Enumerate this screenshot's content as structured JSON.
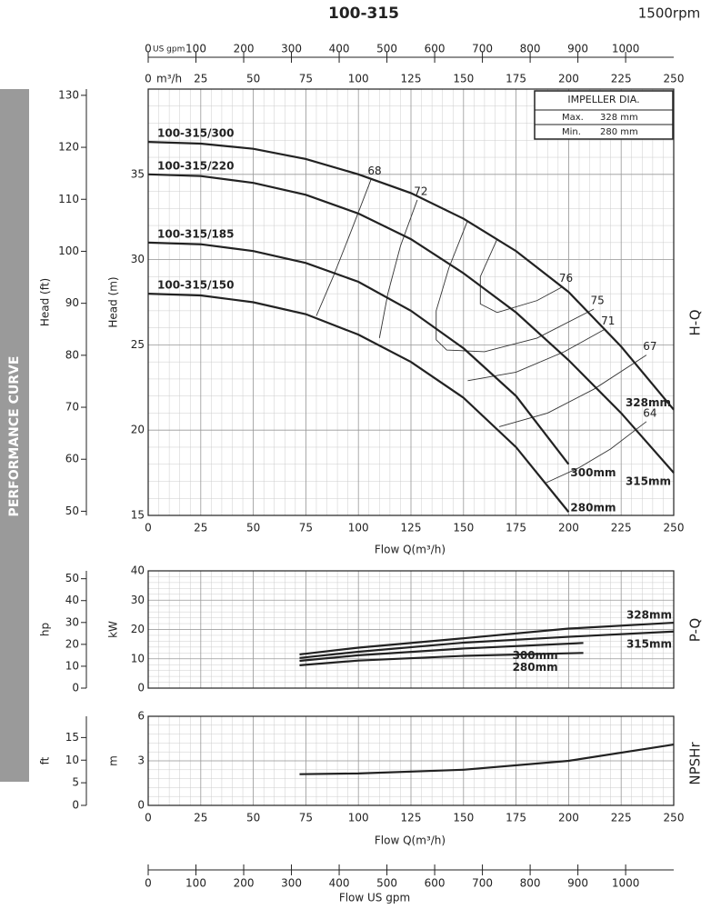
{
  "header": {
    "title": "100-315",
    "speed": "1500rpm"
  },
  "side_label": "PERFORMANCE CURVE",
  "chart_data": [
    {
      "type": "line",
      "title": "H-Q",
      "xlabel": "Flow  Q(m³/h)",
      "top_xlabel": "m³/h",
      "xlim": [
        0,
        250
      ],
      "xticks": [
        0,
        25,
        50,
        75,
        100,
        125,
        150,
        175,
        200,
        225,
        250
      ],
      "x2label": "US gpm",
      "x2lim": [
        0,
        1100.7
      ],
      "x2ticks": [
        0,
        100,
        200,
        300,
        400,
        500,
        600,
        700,
        800,
        900,
        1000
      ],
      "ylabel": "Head (m)",
      "ylim": [
        15,
        40
      ],
      "yticks": [
        15,
        20,
        25,
        30,
        35
      ],
      "y2label": "Head (ft)",
      "y2lim": [
        49.2,
        131.2
      ],
      "y2ticks": [
        50,
        60,
        70,
        80,
        90,
        100,
        110,
        120,
        130
      ],
      "minor_step": [
        5,
        1
      ],
      "series": [
        {
          "name": "100-315/300",
          "diameter": "328mm",
          "color": "#222",
          "x": [
            0,
            25,
            50,
            75,
            100,
            125,
            150,
            175,
            200,
            225,
            250
          ],
          "values": [
            36.9,
            36.8,
            36.5,
            35.9,
            35.0,
            33.9,
            32.4,
            30.5,
            28.1,
            24.9,
            21.2
          ]
        },
        {
          "name": "100-315/220",
          "diameter": "315mm",
          "color": "#222",
          "x": [
            0,
            25,
            50,
            75,
            100,
            125,
            150,
            175,
            200,
            225,
            250
          ],
          "values": [
            35.0,
            34.9,
            34.5,
            33.8,
            32.7,
            31.2,
            29.2,
            26.9,
            24.1,
            21.0,
            17.5
          ]
        },
        {
          "name": "100-315/185",
          "diameter": "300mm",
          "color": "#222",
          "x": [
            0,
            25,
            50,
            75,
            100,
            125,
            150,
            175,
            200
          ],
          "values": [
            31.0,
            30.9,
            30.5,
            29.8,
            28.7,
            27.0,
            24.8,
            22.0,
            18.0
          ]
        },
        {
          "name": "100-315/150",
          "diameter": "280mm",
          "color": "#222",
          "x": [
            0,
            25,
            50,
            75,
            100,
            125,
            150,
            175,
            200
          ],
          "values": [
            28.0,
            27.9,
            27.5,
            26.8,
            25.6,
            24.0,
            21.9,
            19.0,
            15.2
          ]
        }
      ],
      "efficiency": [
        {
          "label": 68,
          "x": [
            80,
            88,
            96,
            106
          ],
          "y": [
            26.7,
            29,
            31.5,
            34.7
          ]
        },
        {
          "label": 72,
          "x": [
            110,
            114,
            120,
            128
          ],
          "y": [
            25.4,
            28,
            30.8,
            33.5
          ]
        },
        {
          "label": 75,
          "x": [
            152,
            143,
            137,
            137,
            142,
            160,
            185,
            212
          ],
          "y": [
            32.3,
            29.5,
            27,
            25.3,
            24.7,
            24.6,
            25.4,
            27.1
          ]
        },
        {
          "label": 76,
          "x": [
            166,
            158,
            158,
            166,
            185,
            197
          ],
          "y": [
            31.2,
            29,
            27.4,
            26.9,
            27.6,
            28.4
          ]
        },
        {
          "label": 71,
          "x": [
            152,
            175,
            198,
            217
          ],
          "y": [
            22.9,
            23.4,
            24.6,
            25.9
          ]
        },
        {
          "label": 67,
          "x": [
            167,
            190,
            212,
            237
          ],
          "y": [
            20.2,
            21.0,
            22.4,
            24.4
          ]
        },
        {
          "label": 64,
          "x": [
            189,
            205,
            220,
            237
          ],
          "y": [
            16.9,
            17.8,
            18.9,
            20.5
          ]
        }
      ],
      "impeller": {
        "title": "IMPELLER DIA.",
        "rows": [
          [
            "Max.",
            "328 mm"
          ],
          [
            "Min.",
            "280 mm"
          ]
        ]
      }
    },
    {
      "type": "line",
      "title": "P-Q",
      "xlim": [
        0,
        250
      ],
      "xticks": [
        0,
        25,
        50,
        75,
        100,
        125,
        150,
        175,
        200,
        225,
        250
      ],
      "ylabel": "kW",
      "ylim": [
        0,
        40
      ],
      "yticks": [
        0,
        10,
        20,
        30,
        40
      ],
      "y2label": "hp",
      "y2lim": [
        0,
        53.6
      ],
      "y2ticks": [
        0,
        10,
        20,
        30,
        40,
        50
      ],
      "minor_step": [
        5,
        2
      ],
      "series": [
        {
          "name": "328mm",
          "color": "#222",
          "x": [
            72,
            100,
            150,
            200,
            250
          ],
          "values": [
            11.5,
            13.8,
            17.0,
            20.3,
            22.3
          ]
        },
        {
          "name": "315mm",
          "color": "#222",
          "x": [
            72,
            100,
            150,
            200,
            250
          ],
          "values": [
            10.3,
            12.4,
            15.5,
            17.5,
            19.3
          ]
        },
        {
          "name": "300mm",
          "color": "#222",
          "x": [
            72,
            100,
            150,
            207
          ],
          "values": [
            9.3,
            11.2,
            13.5,
            15.4
          ]
        },
        {
          "name": "280mm",
          "color": "#222",
          "x": [
            72,
            100,
            150,
            207
          ],
          "values": [
            7.8,
            9.4,
            11.0,
            12.0
          ]
        }
      ]
    },
    {
      "type": "line",
      "title": "NPSHr",
      "xlabel": "Flow  Q(m³/h)",
      "xlim": [
        0,
        250
      ],
      "xticks": [
        0,
        25,
        50,
        75,
        100,
        125,
        150,
        175,
        200,
        225,
        250
      ],
      "x2label": "Flow  US gpm",
      "x2lim": [
        0,
        1100.7
      ],
      "x2ticks": [
        0,
        100,
        200,
        300,
        400,
        500,
        600,
        700,
        800,
        900,
        1000
      ],
      "ylabel": "m",
      "ylim": [
        0,
        6
      ],
      "yticks": [
        0,
        3,
        6
      ],
      "y2label": "ft",
      "y2lim": [
        0,
        19.7
      ],
      "y2ticks": [
        0,
        5,
        10,
        15
      ],
      "minor_step": [
        5,
        0.6
      ],
      "series": [
        {
          "name": "NPSHr",
          "color": "#222",
          "x": [
            72,
            100,
            150,
            200,
            250
          ],
          "values": [
            2.1,
            2.15,
            2.4,
            3.0,
            4.1
          ]
        }
      ]
    }
  ]
}
